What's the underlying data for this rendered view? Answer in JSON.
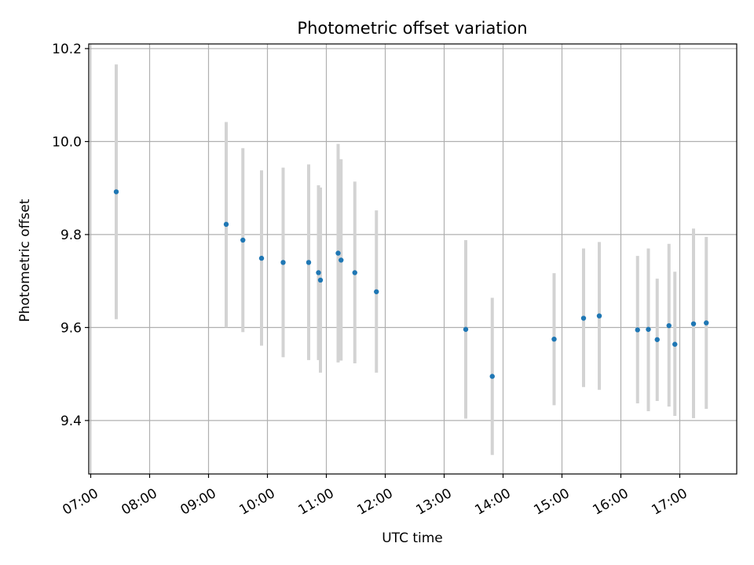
{
  "chart_data": {
    "type": "scatter",
    "title": "Photometric offset variation",
    "xlabel": "UTC time",
    "ylabel": "Photometric offset",
    "x_ticks": [
      "07:00",
      "08:00",
      "09:00",
      "10:00",
      "11:00",
      "12:00",
      "13:00",
      "14:00",
      "15:00",
      "16:00",
      "17:00"
    ],
    "y_ticks": [
      "9.4",
      "9.6",
      "9.8",
      "10.0",
      "10.2"
    ],
    "xlim": [
      "06:58",
      "17:58"
    ],
    "ylim": [
      9.285,
      10.21
    ],
    "grid": true,
    "errorbar_color": "#d3d3d3",
    "point_color": "#1f77b4",
    "points": [
      {
        "x": "07:26",
        "y": 9.892,
        "ylow": 9.618,
        "yhigh": 10.166
      },
      {
        "x": "09:18",
        "y": 9.822,
        "ylow": 9.6,
        "yhigh": 10.042
      },
      {
        "x": "09:35",
        "y": 9.788,
        "ylow": 9.59,
        "yhigh": 9.986
      },
      {
        "x": "09:54",
        "y": 9.749,
        "ylow": 9.561,
        "yhigh": 9.938
      },
      {
        "x": "10:16",
        "y": 9.74,
        "ylow": 9.536,
        "yhigh": 9.944
      },
      {
        "x": "10:42",
        "y": 9.74,
        "ylow": 9.53,
        "yhigh": 9.951
      },
      {
        "x": "10:52",
        "y": 9.718,
        "ylow": 9.53,
        "yhigh": 9.906
      },
      {
        "x": "10:54",
        "y": 9.702,
        "ylow": 9.503,
        "yhigh": 9.901
      },
      {
        "x": "11:12",
        "y": 9.76,
        "ylow": 9.525,
        "yhigh": 9.995
      },
      {
        "x": "11:15",
        "y": 9.745,
        "ylow": 9.529,
        "yhigh": 9.962
      },
      {
        "x": "11:29",
        "y": 9.718,
        "ylow": 9.523,
        "yhigh": 9.914
      },
      {
        "x": "11:51",
        "y": 9.677,
        "ylow": 9.503,
        "yhigh": 9.852
      },
      {
        "x": "13:22",
        "y": 9.596,
        "ylow": 9.404,
        "yhigh": 9.788
      },
      {
        "x": "13:49",
        "y": 9.495,
        "ylow": 9.326,
        "yhigh": 9.664
      },
      {
        "x": "14:52",
        "y": 9.575,
        "ylow": 9.433,
        "yhigh": 9.717
      },
      {
        "x": "15:22",
        "y": 9.62,
        "ylow": 9.472,
        "yhigh": 9.77
      },
      {
        "x": "15:38",
        "y": 9.625,
        "ylow": 9.466,
        "yhigh": 9.784
      },
      {
        "x": "16:17",
        "y": 9.595,
        "ylow": 9.437,
        "yhigh": 9.754
      },
      {
        "x": "16:28",
        "y": 9.596,
        "ylow": 9.42,
        "yhigh": 9.77
      },
      {
        "x": "16:37",
        "y": 9.574,
        "ylow": 9.442,
        "yhigh": 9.705
      },
      {
        "x": "16:49",
        "y": 9.604,
        "ylow": 9.43,
        "yhigh": 9.78
      },
      {
        "x": "16:55",
        "y": 9.564,
        "ylow": 9.41,
        "yhigh": 9.72
      },
      {
        "x": "17:14",
        "y": 9.608,
        "ylow": 9.405,
        "yhigh": 9.813
      },
      {
        "x": "17:27",
        "y": 9.61,
        "ylow": 9.425,
        "yhigh": 9.795
      }
    ]
  }
}
